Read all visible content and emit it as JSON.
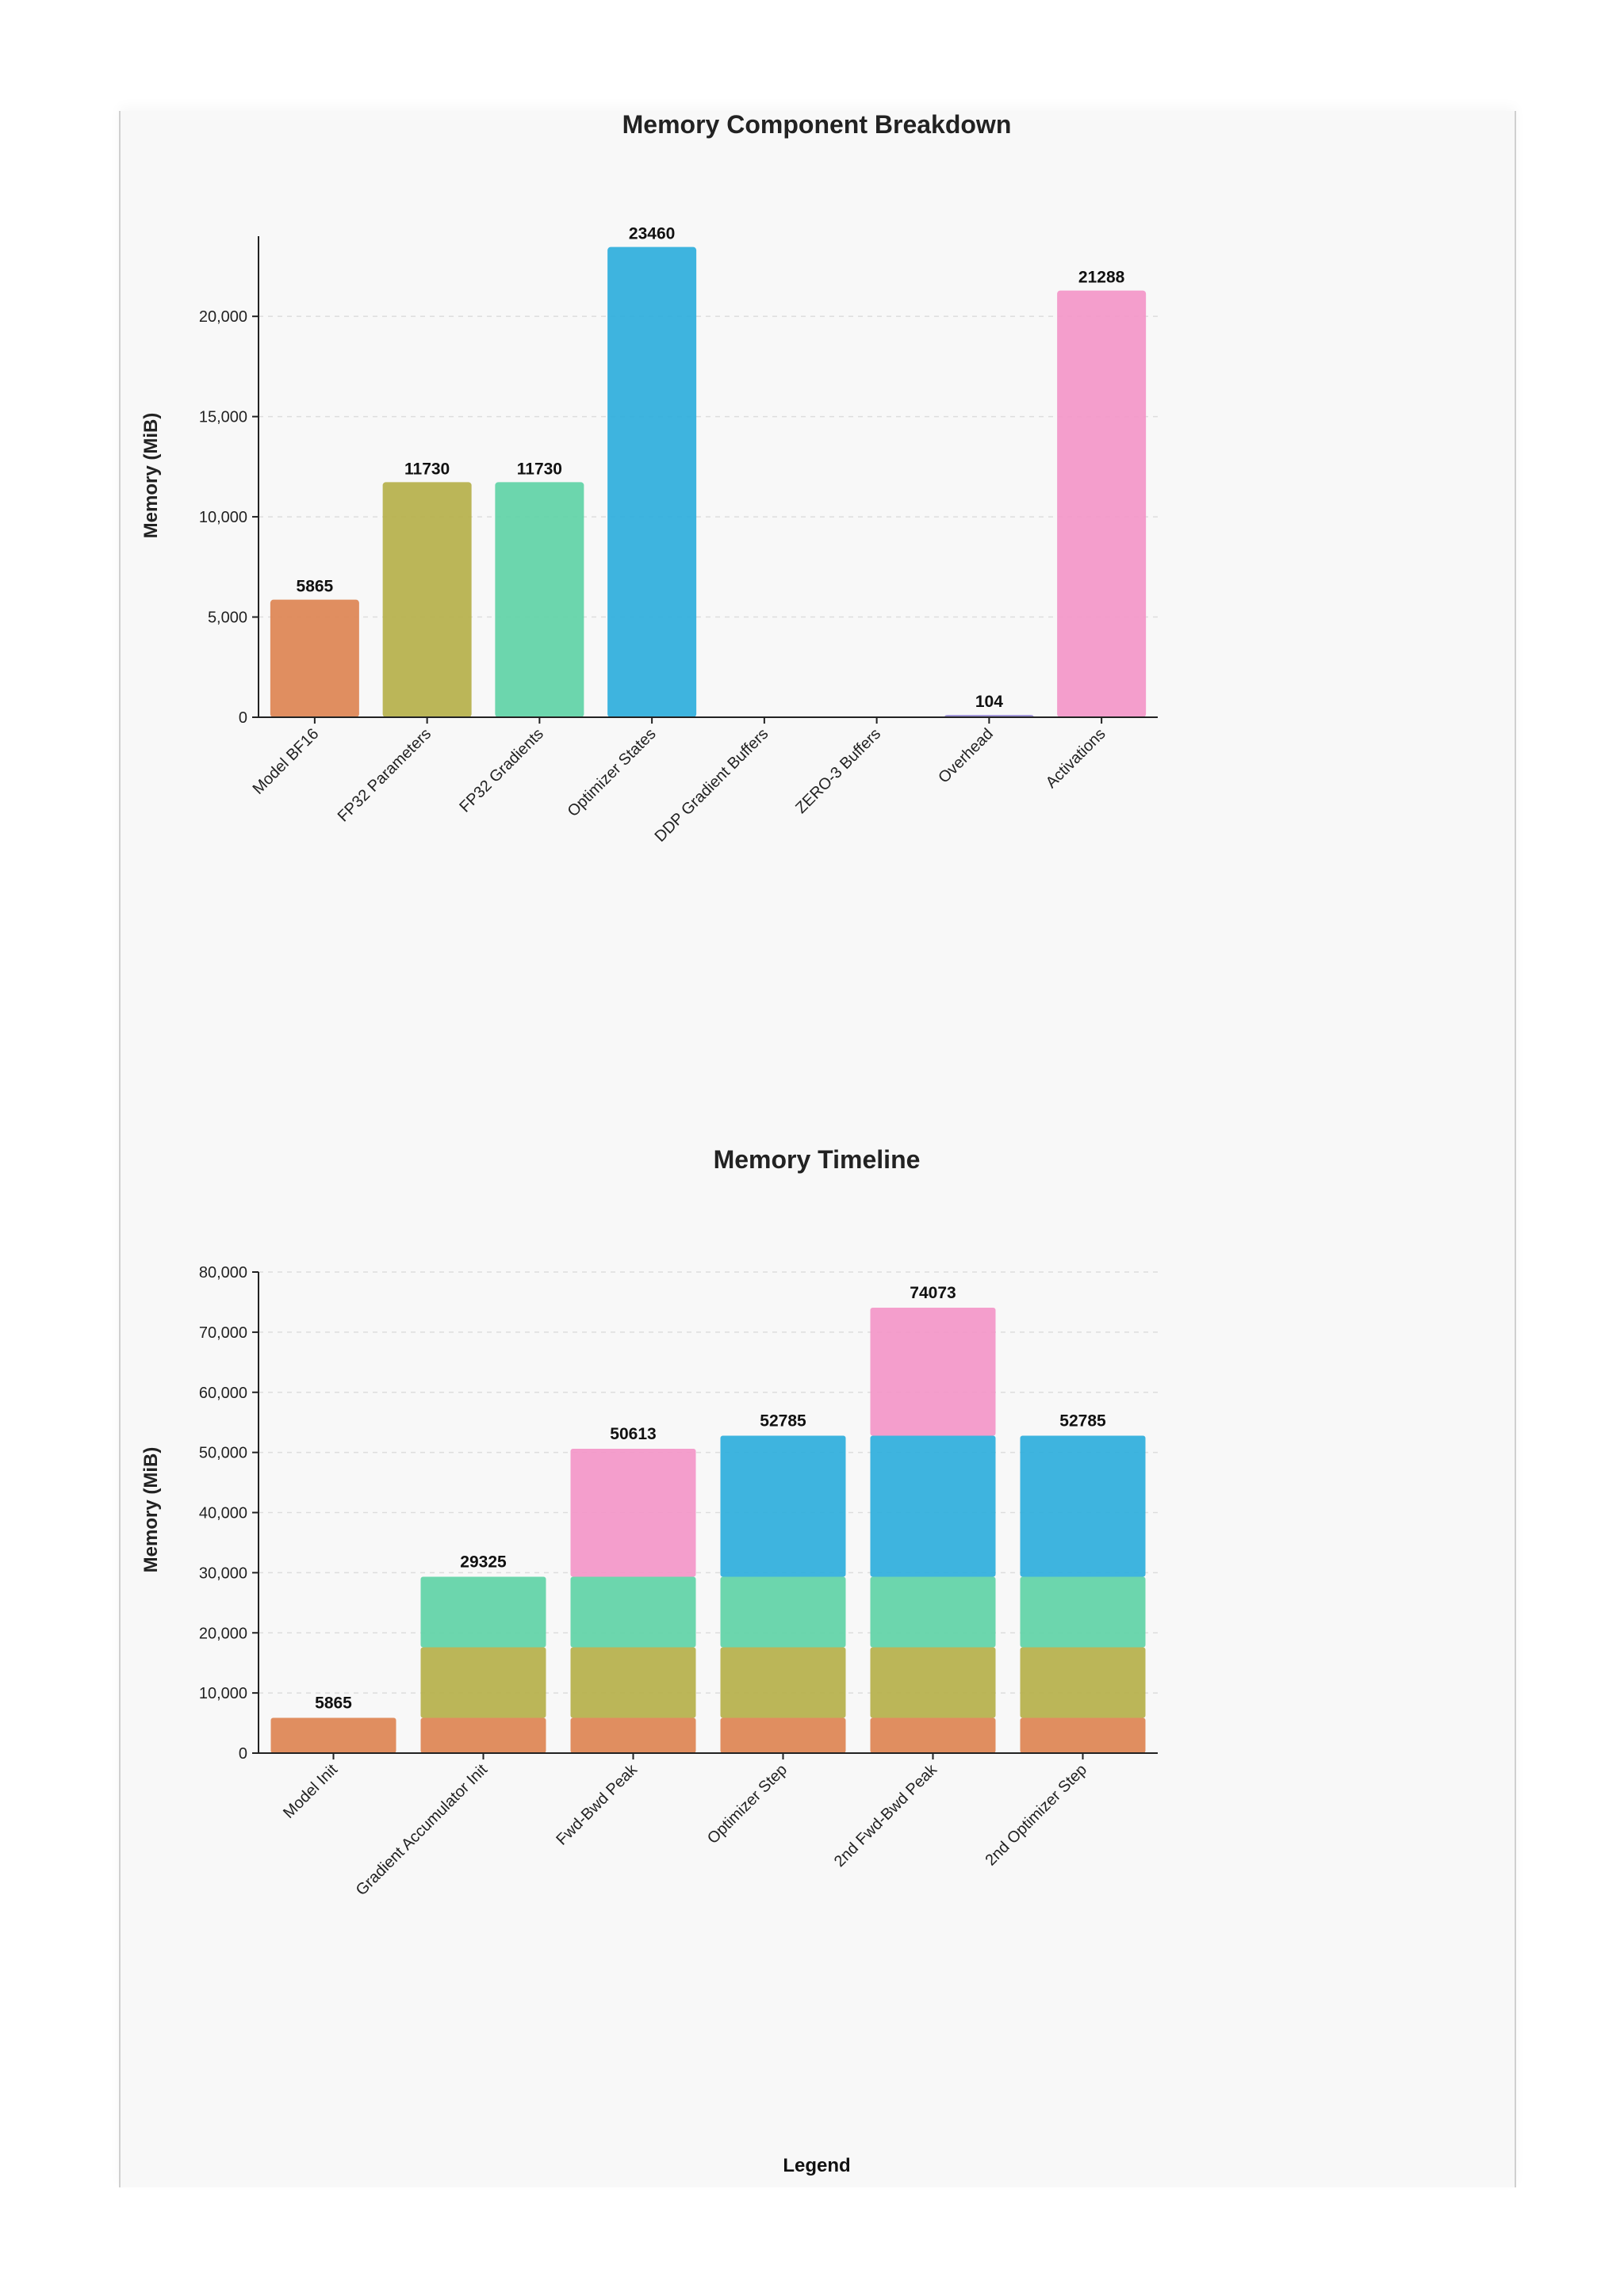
{
  "chart_data": [
    {
      "type": "bar",
      "title": "Memory Component Breakdown",
      "ylabel": "Memory (MiB)",
      "xlabel": "",
      "categories": [
        "Model BF16",
        "FP32 Parameters",
        "FP32 Gradients",
        "Optimizer States",
        "DDP Gradient Buffers",
        "ZERO-3 Buffers",
        "Overhead",
        "Activations"
      ],
      "values": [
        5865,
        11730,
        11730,
        23460,
        0,
        0,
        104,
        21288
      ],
      "data_labels": [
        "5865",
        "11730",
        "11730",
        "23460",
        "",
        "",
        "104",
        "21288"
      ],
      "colors": [
        "#dd8452",
        "#b5b04a",
        "#5fd3a6",
        "#2eaedc",
        "#dd8452",
        "#dd8452",
        "#9b8fd6",
        "#f396c8"
      ],
      "yticks": [
        0,
        5000,
        10000,
        15000,
        20000
      ],
      "ytick_labels": [
        "0",
        "5,000",
        "10,000",
        "15,000",
        "20,000"
      ],
      "ylim": [
        0,
        24000
      ],
      "grid": true
    },
    {
      "type": "bar",
      "stacked": true,
      "title": "Memory Timeline",
      "ylabel": "Memory (MiB)",
      "xlabel": "",
      "categories": [
        "Model Init",
        "Gradient Accumulator Init",
        "Fwd-Bwd Peak",
        "Optimizer Step",
        "2nd Fwd-Bwd Peak",
        "2nd Optimizer Step"
      ],
      "series": [
        {
          "color": "#dd8452",
          "values": [
            5865,
            5865,
            5865,
            5865,
            5865,
            5865
          ]
        },
        {
          "color": "#b5b04a",
          "values": [
            0,
            11730,
            11730,
            11730,
            11730,
            11730
          ]
        },
        {
          "color": "#5fd3a6",
          "values": [
            0,
            11730,
            11730,
            11730,
            11730,
            11730
          ]
        },
        {
          "color": "#2eaedc",
          "values": [
            0,
            0,
            0,
            23460,
            23460,
            23460
          ]
        },
        {
          "color": "#f396c8",
          "values": [
            0,
            0,
            21288,
            0,
            21288,
            0
          ]
        }
      ],
      "totals": [
        5865,
        29325,
        50613,
        52785,
        74073,
        52785
      ],
      "total_labels": [
        "5865",
        "29325",
        "50613",
        "52785",
        "74073",
        "52785"
      ],
      "yticks": [
        0,
        10000,
        20000,
        30000,
        40000,
        50000,
        60000,
        70000,
        80000
      ],
      "ytick_labels": [
        "0",
        "10,000",
        "20,000",
        "30,000",
        "40,000",
        "50,000",
        "60,000",
        "70,000",
        "80,000"
      ],
      "ylim": [
        0,
        80000
      ],
      "grid": true
    }
  ],
  "legend": {
    "title": "Legend"
  }
}
